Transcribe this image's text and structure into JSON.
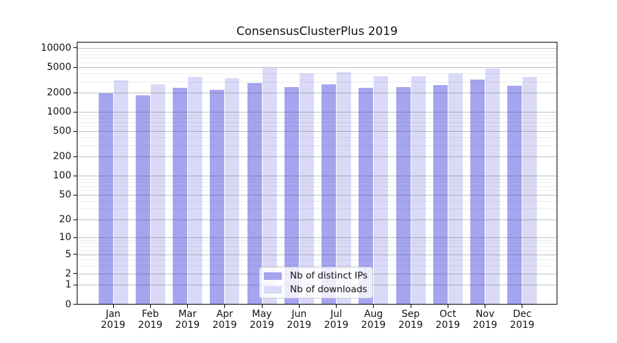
{
  "chart_data": {
    "type": "bar",
    "title": "ConsensusClusterPlus 2019",
    "categories": [
      "Jan",
      "Feb",
      "Mar",
      "Apr",
      "May",
      "Jun",
      "Jul",
      "Aug",
      "Sep",
      "Oct",
      "Nov",
      "Dec"
    ],
    "x_year": "2019",
    "series": [
      {
        "name": "Nb of distinct IPs",
        "color": "#a4a4ef",
        "values": [
          1960,
          1830,
          2380,
          2230,
          2820,
          2470,
          2730,
          2380,
          2440,
          2650,
          3200,
          2560
        ]
      },
      {
        "name": "Nb of downloads",
        "color": "#dadaf8",
        "values": [
          3110,
          2730,
          3530,
          3390,
          4900,
          3990,
          4230,
          3650,
          3670,
          3990,
          4760,
          3530
        ]
      }
    ],
    "xlabel": "",
    "ylabel": "",
    "y_scale": "log10(value+1)",
    "ylim": [
      0,
      12800
    ],
    "y_ticks": [
      0,
      1,
      2,
      5,
      10,
      20,
      50,
      100,
      200,
      500,
      1000,
      2000,
      5000,
      10000
    ],
    "y_minor_ticks": [
      3,
      4,
      6,
      7,
      8,
      9,
      30,
      40,
      60,
      70,
      80,
      90,
      300,
      400,
      600,
      700,
      800,
      900,
      3000,
      4000,
      6000,
      7000,
      8000,
      9000
    ],
    "grid": "horizontal major+minor",
    "legend_position": "lower center"
  },
  "colors": {
    "distinct_ips": "#a4a4ef",
    "downloads": "#dadaf8",
    "grid_major": "rgba(90,90,90,0.40)",
    "grid_minor": "rgba(120,120,120,0.15)",
    "spine": "#000000",
    "text": "#111111",
    "legend_border": "#cccccc",
    "legend_bg": "rgba(255,255,255,0.8)"
  }
}
